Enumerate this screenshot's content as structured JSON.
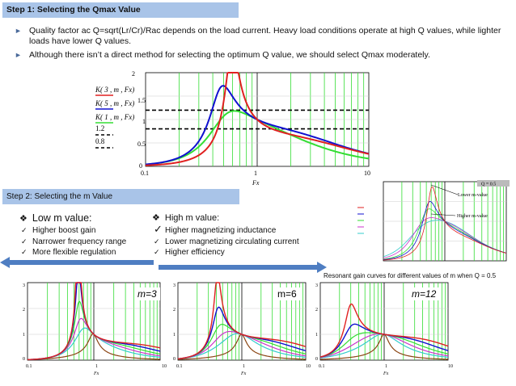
{
  "step1": {
    "header": "Step 1: Selecting the Qmax Value",
    "bullets": [
      "Quality factor ac Q=sqrt(Lr/Cr)/Rac  depends on the load current. Heavy load conditions operate at high Q values, while lighter loads have lower Q values.",
      "Although there isn’t a direct method for selecting the optimum Q value, we should select Qmax moderately."
    ]
  },
  "main_chart": {
    "legend": [
      "K( 3 , m , Fx)",
      "K( 5 , m , Fx)",
      "K( 1 , m , Fx)",
      "1.2",
      "0.8"
    ],
    "y_ticks": [
      "2",
      "1.5",
      "1",
      "0.5",
      "0"
    ],
    "x_ticks": [
      "0.1",
      "1",
      "10"
    ],
    "xlabel": "Fx"
  },
  "step2": {
    "header": "Step 2: Selecting the m Value",
    "low": {
      "title": "Low m value:",
      "items": [
        "Higher boost gain",
        "Narrower frequency range",
        "More flexible regulation"
      ]
    },
    "high": {
      "title": "High m value:",
      "items": [
        "Higher magnetizing inductance",
        "Lower magnetizing circulating current",
        "Higher efficiency"
      ]
    }
  },
  "side_chart": {
    "q_label": "Q = 0.5",
    "lower_label": "Lower m-value",
    "higher_label": "Higher m-value",
    "caption": "Resonant gain curves for different values of m when Q = 0.5"
  },
  "small_charts": [
    {
      "label": "m=3",
      "x_ticks": [
        "0.1",
        "1",
        "10"
      ],
      "y_ticks": [
        "3",
        "2",
        "1",
        "0"
      ],
      "xlabel": "Fx"
    },
    {
      "label": "m=6",
      "x_ticks": [
        "0.1",
        "1",
        "10"
      ],
      "y_ticks": [
        "3",
        "2",
        "1",
        "0"
      ],
      "xlabel": "Fx"
    },
    {
      "label": "m=12",
      "x_ticks": [
        "0.1",
        "1",
        "10"
      ],
      "y_ticks": [
        "3",
        "2",
        "1",
        "0"
      ],
      "xlabel": "Fx"
    }
  ],
  "colors": {
    "header_bg": "#a9c4e8",
    "arrow": "#4f7ec2",
    "grid": "#33dd33",
    "red": "#e02020",
    "blue": "#1010d0",
    "green": "#33dd33"
  }
}
